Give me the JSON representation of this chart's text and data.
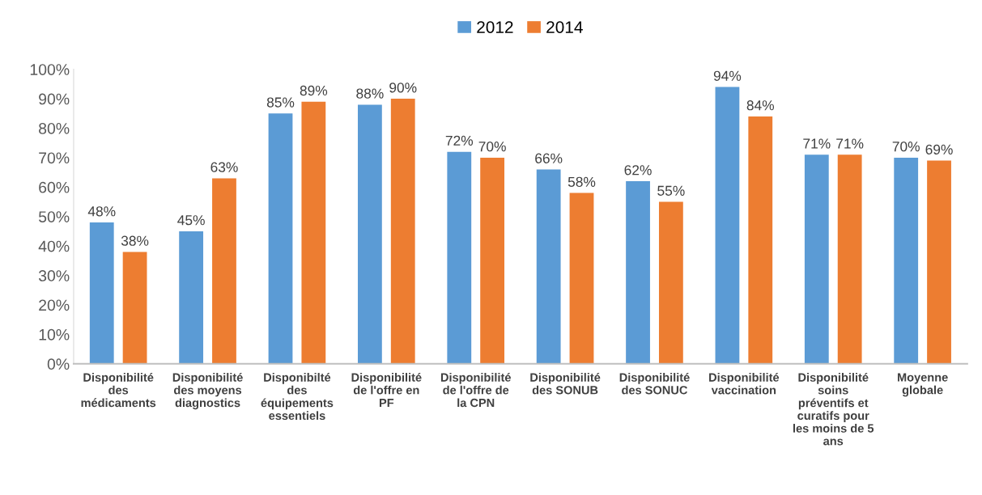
{
  "chart_data": {
    "type": "bar",
    "categories": [
      "Disponibilité des médicaments",
      "Disponibilité des moyens diagnostics",
      "Disponibilté des équipements essentiels",
      "Disponibilité de l'offre en PF",
      "Disponibilité de l'offre de la CPN",
      "Disponibilité des SONUB",
      "Disponibilité des SONUC",
      "Disponibilité vaccination",
      "Disponibilité soins préventifs et curatifs pour les moins de 5 ans",
      "Moyenne globale"
    ],
    "series": [
      {
        "name": "2012",
        "color": "#5b9bd5",
        "values": [
          48,
          45,
          85,
          88,
          72,
          66,
          62,
          94,
          71,
          70
        ],
        "value_labels": [
          "48%",
          "45%",
          "85%",
          "88%",
          "72%",
          "66%",
          "62%",
          "94%",
          "71%",
          "70%"
        ]
      },
      {
        "name": "2014",
        "color": "#ed7d31",
        "values": [
          38,
          63,
          89,
          90,
          70,
          58,
          55,
          84,
          71,
          69
        ],
        "value_labels": [
          "38%",
          "63%",
          "89%",
          "90%",
          "70%",
          "58%",
          "55%",
          "84%",
          "71%",
          "69%"
        ]
      }
    ],
    "ylim": [
      0,
      100
    ],
    "yticks": [
      {
        "value": 0,
        "label": "0%"
      },
      {
        "value": 10,
        "label": "10%"
      },
      {
        "value": 20,
        "label": "20%"
      },
      {
        "value": 30,
        "label": "30%"
      },
      {
        "value": 40,
        "label": "40%"
      },
      {
        "value": 50,
        "label": "50%"
      },
      {
        "value": 60,
        "label": "60%"
      },
      {
        "value": 70,
        "label": "70%"
      },
      {
        "value": 80,
        "label": "80%"
      },
      {
        "value": 90,
        "label": "90%"
      },
      {
        "value": 100,
        "label": "100%"
      }
    ],
    "grid": false,
    "legend": "top"
  }
}
